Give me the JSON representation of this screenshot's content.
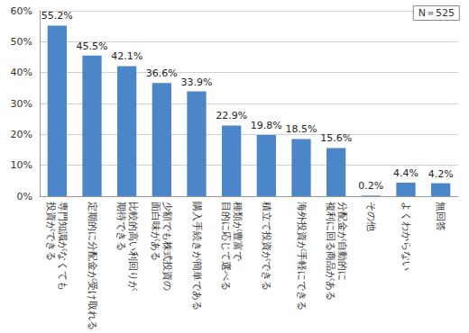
{
  "chart_data": {
    "type": "bar",
    "annotations": [
      "N＝525"
    ],
    "categories": [
      "専門知識がなくても\n投資ができる",
      "定期的に分配金が受け取れる",
      "比較的高い利回りが\n期待できる",
      "少額でも株式投資の\n面白味がある",
      "購入手続きが簡単である",
      "種類が豊富で\n目的に応じて選べる",
      "積立て投資ができる",
      "海外投資が手軽にできる",
      "分配金が自動的に\n複利に回る商品がある",
      "その他",
      "よくわからない",
      "無回答"
    ],
    "values": [
      55.2,
      45.5,
      42.1,
      36.6,
      33.9,
      22.9,
      19.8,
      18.5,
      15.6,
      0.2,
      4.4,
      4.2
    ],
    "value_labels": [
      "55.2%",
      "45.5%",
      "42.1%",
      "36.6%",
      "33.9%",
      "22.9%",
      "19.8%",
      "18.5%",
      "15.6%",
      "0.2%",
      "4.4%",
      "4.2%"
    ],
    "data_labels": true,
    "color": "#4a86c8",
    "ylim": [
      0,
      60
    ],
    "yticks": [
      {
        "value": 0,
        "label": "0%"
      },
      {
        "value": 10,
        "label": "10%"
      },
      {
        "value": 20,
        "label": "20%"
      },
      {
        "value": 30,
        "label": "30%"
      },
      {
        "value": 40,
        "label": "40%"
      },
      {
        "value": 50,
        "label": "50%"
      },
      {
        "value": 60,
        "label": "60%"
      }
    ],
    "grid": true
  }
}
